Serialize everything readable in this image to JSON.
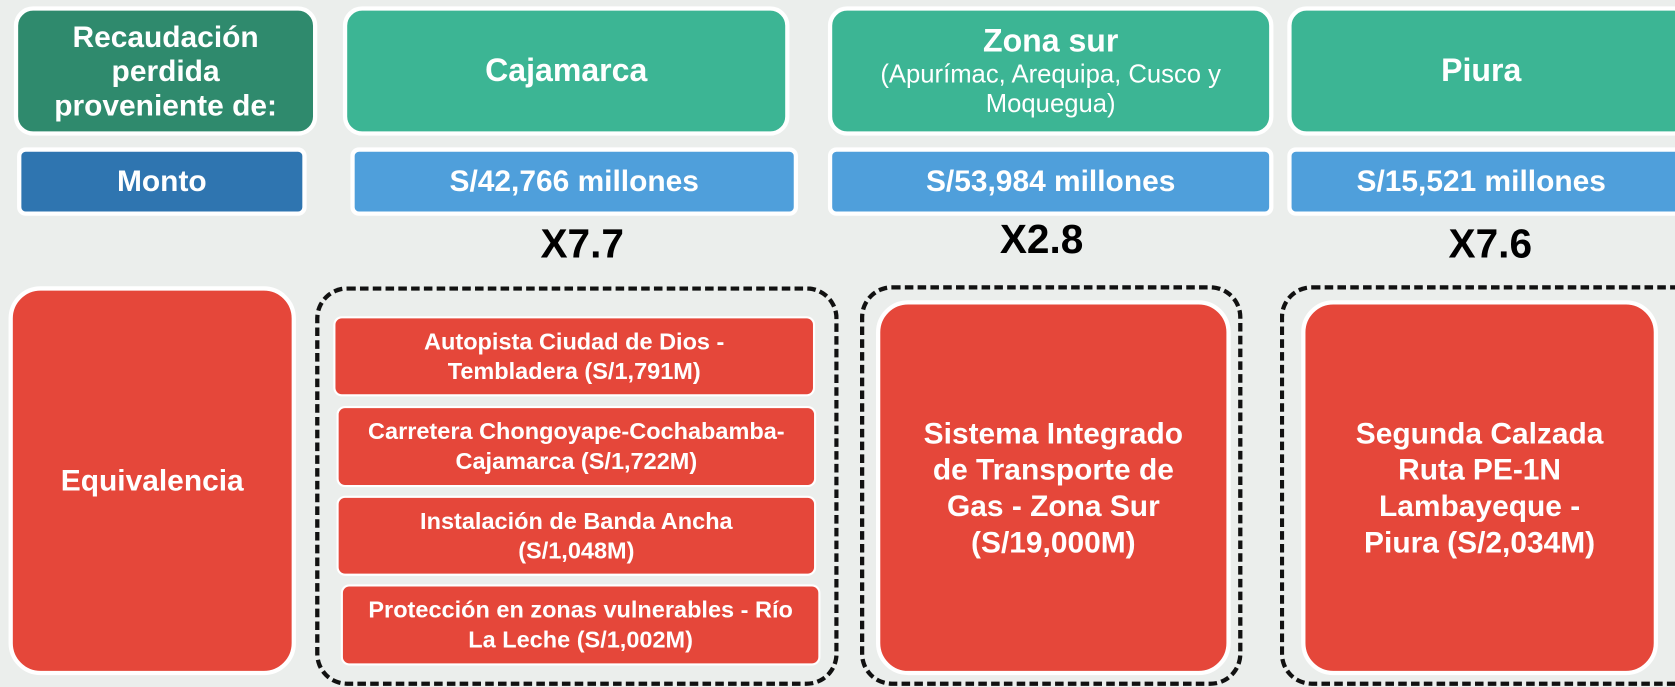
{
  "header": {
    "label": "Recaudación perdida proveniente de:",
    "columns": [
      {
        "title": "Cajamarca"
      },
      {
        "title": "Zona sur",
        "subtitle": "(Apurímac, Arequipa, Cusco y Moquegua)"
      },
      {
        "title": "Piura"
      }
    ]
  },
  "amount": {
    "label": "Monto",
    "values": [
      "S/42,766 millones",
      "S/53,984 millones",
      "S/15,521 millones"
    ]
  },
  "multipliers": [
    "X7.7",
    "X2.8",
    "X7.6"
  ],
  "equivalence": {
    "label": "Equivalencia",
    "columns": [
      [
        "Autopista Ciudad de Dios - Tembladera (S/1,791M)",
        "Carretera Chongoyape-Cochabamba-Cajamarca (S/1,722M)",
        "Instalación de Banda Ancha (S/1,048M)",
        "Protección en zonas vulnerables - Río La Leche (S/1,002M)"
      ],
      [
        "Sistema Integrado de Transporte de Gas - Zona Sur (S/19,000M)"
      ],
      [
        "Segunda Calzada Ruta PE-1N Lambayeque - Piura (S/2,034M)"
      ]
    ]
  }
}
